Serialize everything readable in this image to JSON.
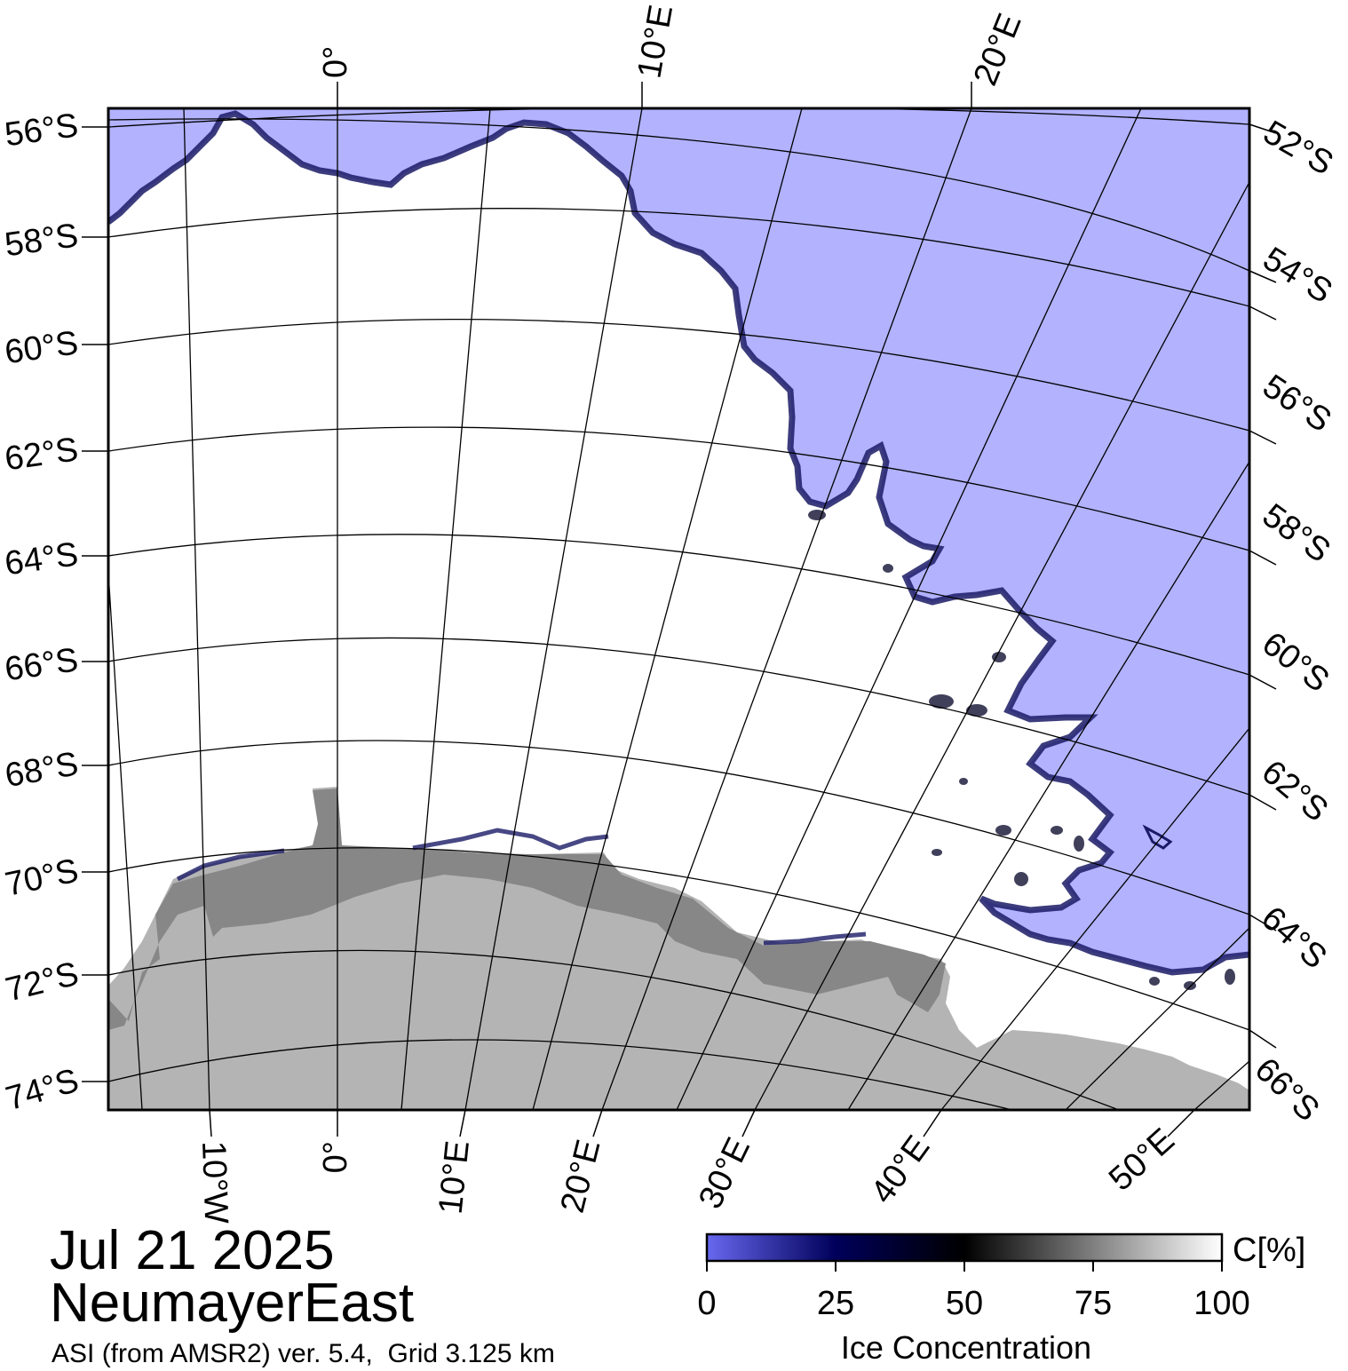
{
  "map": {
    "date": "Jul 21 2025",
    "region": "NeumayerEast",
    "source": "ASI (from AMSR2) ver. 5.4,  Grid 3.125 km",
    "left_lat_labels": [
      "56°S",
      "58°S",
      "60°S",
      "62°S",
      "64°S",
      "66°S",
      "68°S",
      "70°S",
      "72°S",
      "74°S"
    ],
    "right_lat_labels": [
      "52°S",
      "54°S",
      "56°S",
      "58°S",
      "60°S",
      "62°S",
      "64°S",
      "66°S"
    ],
    "top_lon_labels": [
      "0°",
      "10°E",
      "20°E"
    ],
    "bottom_lon_labels": [
      "10°W",
      "0°",
      "10°E",
      "20°E",
      "30°E",
      "40°E",
      "50°E"
    ],
    "colors": {
      "open_water": "#b2b2ff",
      "land": "#b4b4b4",
      "ice_shelf": "#878787",
      "ice": "#ffffff",
      "ice_edge": "#1a1a66"
    }
  },
  "colorbar": {
    "title": "Ice Concentration",
    "unit": "C[%]",
    "ticks": [
      "0",
      "25",
      "50",
      "75",
      "100"
    ],
    "stops": [
      {
        "value": 0,
        "color": "#6868f0"
      },
      {
        "value": 25,
        "color": "#00005a"
      },
      {
        "value": 50,
        "color": "#000000"
      },
      {
        "value": 100,
        "color": "#ffffff"
      }
    ]
  }
}
